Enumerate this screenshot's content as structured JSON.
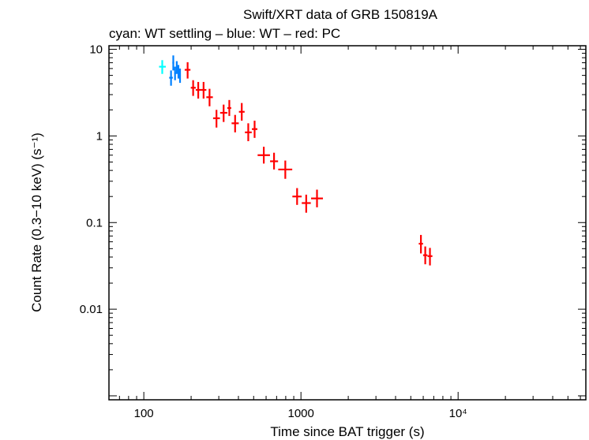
{
  "chart_data": {
    "type": "scatter",
    "title": "Swift/XRT data of GRB 150819A",
    "subtitle": "cyan: WT settling – blue: WT – red: PC",
    "xlabel": "Time since BAT trigger (s)",
    "ylabel": "Count Rate (0.3−10 keV) (s⁻¹)",
    "xscale": "log",
    "yscale": "log",
    "xlim": [
      60,
      65000
    ],
    "ylim": [
      0.0009,
      11
    ],
    "x_ticks": [
      {
        "value": 100,
        "label": "100"
      },
      {
        "value": 1000,
        "label": "1000"
      },
      {
        "value": 10000,
        "label": "10⁴"
      }
    ],
    "y_ticks": [
      {
        "value": 0.01,
        "label": "0.01"
      },
      {
        "value": 0.1,
        "label": "0.1"
      },
      {
        "value": 1,
        "label": "1"
      },
      {
        "value": 10,
        "label": "10"
      }
    ],
    "series": [
      {
        "name": "WT settling",
        "color": "#00ffff",
        "points": [
          {
            "x": 131,
            "xlo": 125,
            "xhi": 138,
            "y": 6.3,
            "ylo": 5.2,
            "yhi": 7.5
          }
        ]
      },
      {
        "name": "WT",
        "color": "#0080ff",
        "points": [
          {
            "x": 149,
            "xlo": 145,
            "xhi": 153,
            "y": 4.7,
            "ylo": 3.8,
            "yhi": 5.7
          },
          {
            "x": 154,
            "xlo": 152,
            "xhi": 156,
            "y": 7.0,
            "ylo": 5.7,
            "yhi": 8.5
          },
          {
            "x": 158,
            "xlo": 156,
            "xhi": 160,
            "y": 5.3,
            "ylo": 4.4,
            "yhi": 6.3
          },
          {
            "x": 162,
            "xlo": 160,
            "xhi": 164,
            "y": 6.2,
            "ylo": 5.2,
            "yhi": 7.3
          },
          {
            "x": 166,
            "xlo": 164,
            "xhi": 168,
            "y": 5.6,
            "ylo": 4.6,
            "yhi": 6.6
          },
          {
            "x": 170,
            "xlo": 168,
            "xhi": 172,
            "y": 5.0,
            "ylo": 4.1,
            "yhi": 6.0
          }
        ]
      },
      {
        "name": "PC",
        "color": "#ff0000",
        "points": [
          {
            "x": 190,
            "xlo": 182,
            "xhi": 198,
            "y": 5.8,
            "ylo": 4.6,
            "yhi": 7.1
          },
          {
            "x": 206,
            "xlo": 199,
            "xhi": 214,
            "y": 3.6,
            "ylo": 2.9,
            "yhi": 4.4
          },
          {
            "x": 222,
            "xlo": 214,
            "xhi": 231,
            "y": 3.4,
            "ylo": 2.7,
            "yhi": 4.2
          },
          {
            "x": 240,
            "xlo": 231,
            "xhi": 250,
            "y": 3.4,
            "ylo": 2.7,
            "yhi": 4.2
          },
          {
            "x": 262,
            "xlo": 250,
            "xhi": 275,
            "y": 2.8,
            "ylo": 2.2,
            "yhi": 3.5
          },
          {
            "x": 290,
            "xlo": 276,
            "xhi": 305,
            "y": 1.6,
            "ylo": 1.25,
            "yhi": 2.0
          },
          {
            "x": 322,
            "xlo": 306,
            "xhi": 340,
            "y": 1.85,
            "ylo": 1.45,
            "yhi": 2.3
          },
          {
            "x": 350,
            "xlo": 340,
            "xhi": 360,
            "y": 2.1,
            "ylo": 1.7,
            "yhi": 2.6
          },
          {
            "x": 381,
            "xlo": 362,
            "xhi": 402,
            "y": 1.4,
            "ylo": 1.1,
            "yhi": 1.75
          },
          {
            "x": 420,
            "xlo": 403,
            "xhi": 438,
            "y": 1.9,
            "ylo": 1.5,
            "yhi": 2.4
          },
          {
            "x": 462,
            "xlo": 440,
            "xhi": 486,
            "y": 1.1,
            "ylo": 0.87,
            "yhi": 1.4
          },
          {
            "x": 507,
            "xlo": 487,
            "xhi": 528,
            "y": 1.2,
            "ylo": 0.95,
            "yhi": 1.5
          },
          {
            "x": 580,
            "xlo": 530,
            "xhi": 635,
            "y": 0.6,
            "ylo": 0.48,
            "yhi": 0.75
          },
          {
            "x": 674,
            "xlo": 636,
            "xhi": 715,
            "y": 0.51,
            "ylo": 0.41,
            "yhi": 0.64
          },
          {
            "x": 795,
            "xlo": 717,
            "xhi": 880,
            "y": 0.41,
            "ylo": 0.32,
            "yhi": 0.52
          },
          {
            "x": 945,
            "xlo": 882,
            "xhi": 1010,
            "y": 0.2,
            "ylo": 0.16,
            "yhi": 0.25
          },
          {
            "x": 1080,
            "xlo": 1012,
            "xhi": 1155,
            "y": 0.168,
            "ylo": 0.13,
            "yhi": 0.21
          },
          {
            "x": 1265,
            "xlo": 1160,
            "xhi": 1380,
            "y": 0.19,
            "ylo": 0.15,
            "yhi": 0.24
          },
          {
            "x": 5800,
            "xlo": 5620,
            "xhi": 5980,
            "y": 0.057,
            "ylo": 0.044,
            "yhi": 0.072
          },
          {
            "x": 6180,
            "xlo": 5990,
            "xhi": 6380,
            "y": 0.042,
            "ylo": 0.033,
            "yhi": 0.053
          },
          {
            "x": 6620,
            "xlo": 6390,
            "xhi": 6860,
            "y": 0.041,
            "ylo": 0.032,
            "yhi": 0.051
          }
        ]
      }
    ]
  }
}
